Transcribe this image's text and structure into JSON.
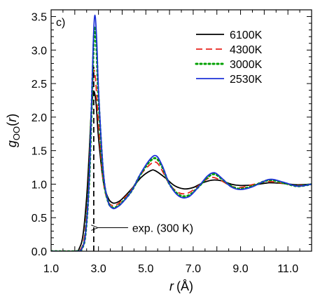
{
  "chart_data": {
    "type": "line",
    "panel_label": "c)",
    "xlabel": {
      "var": "r",
      "unit": "(Å)"
    },
    "ylabel": {
      "var": "g",
      "sub": "OO",
      "arg": "r"
    },
    "xlim": [
      1.0,
      12.0
    ],
    "ylim": [
      0.0,
      3.6
    ],
    "x_ticks": [
      1.0,
      3.0,
      5.0,
      7.0,
      9.0,
      11.0
    ],
    "x_tick_labels": [
      "1.0",
      "3.0",
      "5.0",
      "7.0",
      "9.0",
      "11.0"
    ],
    "y_ticks": [
      0.0,
      0.5,
      1.0,
      1.5,
      2.0,
      2.5,
      3.0,
      3.5
    ],
    "y_tick_labels": [
      "0.0",
      "0.5",
      "1.0",
      "1.5",
      "2.0",
      "2.5",
      "3.0",
      "3.5"
    ],
    "legend_position": "top-right",
    "series": [
      {
        "name": "6100K",
        "color": "#000000",
        "dash": "solid",
        "x": [
          1.0,
          2.0,
          2.2,
          2.35,
          2.5,
          2.6,
          2.7,
          2.8,
          2.9,
          3.0,
          3.2,
          3.4,
          3.6,
          3.8,
          4.0,
          4.4,
          4.8,
          5.2,
          5.4,
          5.8,
          6.2,
          6.6,
          7.0,
          7.4,
          7.8,
          8.2,
          8.6,
          9.0,
          9.6,
          10.2,
          10.8,
          11.4,
          12.0
        ],
        "y": [
          0.0,
          0.0,
          0.05,
          0.25,
          0.8,
          1.4,
          2.1,
          2.38,
          2.2,
          1.7,
          1.05,
          0.8,
          0.72,
          0.73,
          0.78,
          0.93,
          1.1,
          1.2,
          1.2,
          1.1,
          0.98,
          0.93,
          0.95,
          1.02,
          1.06,
          1.05,
          1.0,
          0.98,
          0.99,
          1.02,
          1.01,
          0.99,
          1.0
        ]
      },
      {
        "name": "4300K",
        "color": "#e8231c",
        "dash": "dash",
        "x": [
          1.0,
          2.05,
          2.25,
          2.4,
          2.55,
          2.65,
          2.75,
          2.82,
          2.9,
          3.0,
          3.2,
          3.4,
          3.6,
          3.8,
          4.0,
          4.4,
          4.8,
          5.2,
          5.4,
          5.6,
          6.0,
          6.4,
          6.8,
          7.2,
          7.6,
          7.85,
          8.2,
          8.6,
          9.0,
          9.6,
          10.2,
          10.8,
          11.4,
          12.0
        ],
        "y": [
          0.0,
          0.0,
          0.03,
          0.2,
          0.8,
          1.6,
          2.5,
          2.7,
          2.45,
          1.9,
          1.05,
          0.75,
          0.68,
          0.7,
          0.76,
          0.92,
          1.15,
          1.3,
          1.33,
          1.26,
          1.0,
          0.87,
          0.87,
          0.97,
          1.08,
          1.1,
          1.05,
          0.97,
          0.95,
          1.0,
          1.04,
          1.01,
          0.98,
          1.0
        ]
      },
      {
        "name": "3000K",
        "color": "#00a000",
        "dash": "dot",
        "x": [
          1.0,
          2.1,
          2.3,
          2.45,
          2.6,
          2.7,
          2.78,
          2.84,
          2.92,
          3.0,
          3.2,
          3.4,
          3.6,
          3.8,
          4.0,
          4.4,
          4.8,
          5.2,
          5.45,
          5.7,
          6.0,
          6.4,
          6.8,
          7.2,
          7.6,
          7.9,
          8.2,
          8.6,
          9.0,
          9.5,
          10.2,
          10.8,
          11.4,
          12.0
        ],
        "y": [
          0.0,
          0.0,
          0.04,
          0.25,
          1.0,
          2.0,
          2.9,
          3.35,
          3.0,
          2.3,
          1.15,
          0.75,
          0.65,
          0.67,
          0.73,
          0.9,
          1.16,
          1.35,
          1.38,
          1.25,
          1.0,
          0.84,
          0.83,
          0.95,
          1.1,
          1.15,
          1.08,
          0.97,
          0.93,
          0.97,
          1.06,
          1.02,
          0.97,
          1.0
        ]
      },
      {
        "name": "2530K",
        "color": "#1e32d8",
        "dash": "solid",
        "x": [
          1.0,
          2.1,
          2.3,
          2.45,
          2.6,
          2.7,
          2.78,
          2.85,
          2.93,
          3.0,
          3.2,
          3.4,
          3.6,
          3.8,
          4.0,
          4.4,
          4.8,
          5.2,
          5.45,
          5.7,
          6.0,
          6.4,
          6.8,
          7.2,
          7.6,
          7.9,
          8.2,
          8.6,
          9.0,
          9.5,
          10.2,
          10.8,
          11.4,
          12.0
        ],
        "y": [
          0.0,
          0.0,
          0.04,
          0.25,
          1.0,
          2.1,
          3.1,
          3.52,
          3.1,
          2.4,
          1.2,
          0.75,
          0.64,
          0.66,
          0.72,
          0.9,
          1.17,
          1.38,
          1.42,
          1.27,
          1.0,
          0.82,
          0.81,
          0.95,
          1.12,
          1.17,
          1.09,
          0.96,
          0.92,
          0.96,
          1.07,
          1.03,
          0.97,
          1.0
        ]
      }
    ],
    "annotations": [
      {
        "text": "exp. (300 K)",
        "line_x": 2.8,
        "arrow_tail_x": 4.25,
        "y": 0.35
      }
    ]
  }
}
